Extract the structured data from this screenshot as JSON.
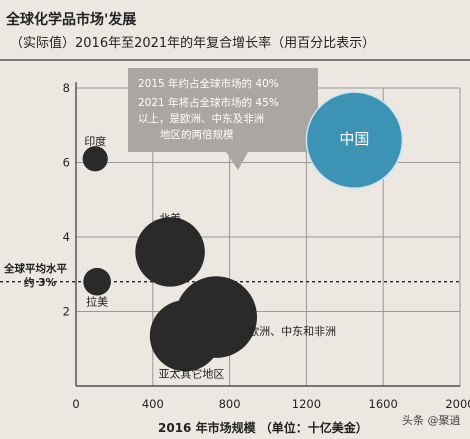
{
  "chart_data": {
    "type": "bubble",
    "title": "全球化学品市场'发展",
    "subtitle": "（实际值）2016年至2021年的年复合增长率（用百分比表示）",
    "xlabel": "2016 年市场规模 （单位：十亿美金）",
    "ylabel": "",
    "xlim": [
      0,
      2000
    ],
    "ylim": [
      0,
      8
    ],
    "xticks": [
      0,
      400,
      800,
      1200,
      1600,
      2000
    ],
    "yticks": [
      2,
      4,
      6,
      8
    ],
    "grid": true,
    "reference_line": {
      "y": 2.8,
      "label_line1": "全球平均水平",
      "label_line2": "约 3%"
    },
    "annotation": {
      "line1": "2015 年约占全球市场的 40%",
      "line2": "2021 年将占全球市场的 45%",
      "line3": "以上，是欧洲、中东及非洲",
      "line4": "地区的两倍规模"
    },
    "series": [
      {
        "label": "中国",
        "x": 1450,
        "y": 6.6,
        "size": 1450,
        "color": "#3d93b4"
      },
      {
        "label": "印度",
        "x": 100,
        "y": 6.1,
        "size": 100,
        "color": "#2a2a2a"
      },
      {
        "label": "北美",
        "x": 490,
        "y": 3.6,
        "size": 760,
        "color": "#2a2a2a"
      },
      {
        "label": "拉美",
        "x": 110,
        "y": 2.8,
        "size": 120,
        "color": "#2a2a2a"
      },
      {
        "label": "欧洲、中东和非洲",
        "x": 730,
        "y": 1.85,
        "size": 1050,
        "color": "#2a2a2a"
      },
      {
        "label": "亚太其它地区",
        "x": 570,
        "y": 1.35,
        "size": 800,
        "color": "#2a2a2a"
      }
    ]
  },
  "watermark": "头条 @聚逍"
}
